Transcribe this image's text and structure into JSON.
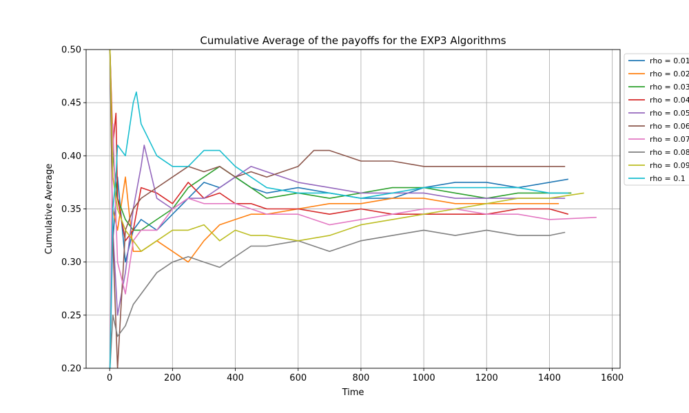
{
  "chart_data": {
    "type": "line",
    "title": "Cumulative Average of the payoffs for the EXP3 Algorithms",
    "xlabel": "Time",
    "ylabel": "Cumulative Average",
    "xlim": [
      -75,
      1625
    ],
    "ylim": [
      0.2,
      0.5
    ],
    "xticks": [
      0,
      200,
      400,
      600,
      800,
      1000,
      1200,
      1400,
      1600
    ],
    "yticks": [
      0.2,
      0.25,
      0.3,
      0.35,
      0.4,
      0.45,
      0.5
    ],
    "xtick_labels": [
      "0",
      "200",
      "400",
      "600",
      "800",
      "1000",
      "1200",
      "1400",
      "1600"
    ],
    "ytick_labels": [
      "0.20",
      "0.25",
      "0.30",
      "0.35",
      "0.40",
      "0.45",
      "0.50"
    ],
    "grid": true,
    "legend_position": "outside-right-top",
    "series": [
      {
        "name": "rho = 0.01",
        "color": "#1f77b4",
        "x": [
          1,
          10,
          25,
          50,
          75,
          100,
          150,
          200,
          250,
          300,
          350,
          400,
          450,
          500,
          600,
          700,
          800,
          900,
          1000,
          1100,
          1200,
          1300,
          1400,
          1460
        ],
        "y": [
          0.5,
          0.32,
          0.38,
          0.3,
          0.33,
          0.34,
          0.33,
          0.345,
          0.36,
          0.375,
          0.37,
          0.38,
          0.37,
          0.365,
          0.37,
          0.365,
          0.36,
          0.36,
          0.37,
          0.375,
          0.375,
          0.37,
          0.375,
          0.378
        ]
      },
      {
        "name": "rho = 0.02",
        "color": "#ff7f0e",
        "x": [
          1,
          10,
          25,
          50,
          75,
          100,
          150,
          200,
          250,
          300,
          350,
          400,
          450,
          500,
          600,
          700,
          800,
          900,
          1000,
          1100,
          1200,
          1300,
          1400,
          1430
        ],
        "y": [
          0.2,
          0.35,
          0.33,
          0.38,
          0.31,
          0.31,
          0.32,
          0.31,
          0.3,
          0.32,
          0.335,
          0.34,
          0.345,
          0.345,
          0.35,
          0.355,
          0.355,
          0.36,
          0.36,
          0.355,
          0.355,
          0.355,
          0.355,
          0.355
        ]
      },
      {
        "name": "rho = 0.03",
        "color": "#2ca02c",
        "x": [
          1,
          10,
          25,
          50,
          75,
          100,
          150,
          200,
          250,
          300,
          350,
          400,
          450,
          500,
          600,
          700,
          800,
          900,
          1000,
          1100,
          1200,
          1300,
          1400,
          1470
        ],
        "y": [
          0.5,
          0.4,
          0.36,
          0.34,
          0.33,
          0.33,
          0.34,
          0.35,
          0.37,
          0.38,
          0.39,
          0.38,
          0.37,
          0.36,
          0.365,
          0.36,
          0.365,
          0.37,
          0.37,
          0.365,
          0.36,
          0.365,
          0.365,
          0.365
        ]
      },
      {
        "name": "rho = 0.04",
        "color": "#d62728",
        "x": [
          1,
          10,
          20,
          25,
          50,
          75,
          100,
          150,
          200,
          250,
          300,
          350,
          400,
          450,
          500,
          600,
          700,
          800,
          900,
          1000,
          1100,
          1200,
          1300,
          1400,
          1460
        ],
        "y": [
          0.5,
          0.41,
          0.44,
          0.36,
          0.32,
          0.33,
          0.37,
          0.365,
          0.355,
          0.375,
          0.36,
          0.365,
          0.355,
          0.355,
          0.35,
          0.35,
          0.345,
          0.35,
          0.345,
          0.345,
          0.345,
          0.345,
          0.35,
          0.35,
          0.345
        ]
      },
      {
        "name": "rho = 0.05",
        "color": "#9467bd",
        "x": [
          1,
          10,
          25,
          50,
          75,
          100,
          110,
          150,
          200,
          250,
          300,
          350,
          400,
          450,
          500,
          600,
          700,
          800,
          900,
          1000,
          1100,
          1200,
          1300,
          1400,
          1450
        ],
        "y": [
          0.2,
          0.33,
          0.25,
          0.29,
          0.35,
          0.39,
          0.41,
          0.36,
          0.35,
          0.36,
          0.36,
          0.37,
          0.38,
          0.39,
          0.385,
          0.375,
          0.37,
          0.365,
          0.365,
          0.365,
          0.36,
          0.36,
          0.36,
          0.36,
          0.36
        ]
      },
      {
        "name": "rho = 0.06",
        "color": "#8c564b",
        "x": [
          1,
          10,
          25,
          50,
          75,
          100,
          150,
          200,
          250,
          300,
          350,
          400,
          450,
          500,
          600,
          650,
          700,
          800,
          900,
          1000,
          1100,
          1200,
          1300,
          1400,
          1450
        ],
        "y": [
          0.5,
          0.32,
          0.2,
          0.33,
          0.35,
          0.36,
          0.37,
          0.38,
          0.39,
          0.385,
          0.39,
          0.38,
          0.385,
          0.38,
          0.39,
          0.405,
          0.405,
          0.395,
          0.395,
          0.39,
          0.39,
          0.39,
          0.39,
          0.39,
          0.39
        ]
      },
      {
        "name": "rho = 0.07",
        "color": "#e377c2",
        "x": [
          1,
          10,
          25,
          50,
          75,
          100,
          150,
          200,
          250,
          300,
          350,
          400,
          450,
          500,
          600,
          700,
          800,
          900,
          1000,
          1100,
          1200,
          1300,
          1400,
          1550
        ],
        "y": [
          0.2,
          0.43,
          0.3,
          0.27,
          0.32,
          0.33,
          0.33,
          0.35,
          0.36,
          0.355,
          0.355,
          0.355,
          0.35,
          0.345,
          0.345,
          0.335,
          0.34,
          0.345,
          0.35,
          0.35,
          0.345,
          0.345,
          0.34,
          0.342
        ]
      },
      {
        "name": "rho = 0.08",
        "color": "#7f7f7f",
        "x": [
          1,
          10,
          25,
          50,
          75,
          100,
          150,
          200,
          250,
          300,
          350,
          400,
          450,
          500,
          600,
          700,
          800,
          900,
          1000,
          1100,
          1200,
          1300,
          1400,
          1450
        ],
        "y": [
          0.2,
          0.25,
          0.23,
          0.24,
          0.26,
          0.27,
          0.29,
          0.3,
          0.305,
          0.3,
          0.295,
          0.305,
          0.315,
          0.315,
          0.32,
          0.31,
          0.32,
          0.325,
          0.33,
          0.325,
          0.33,
          0.325,
          0.325,
          0.328
        ]
      },
      {
        "name": "rho = 0.09",
        "color": "#bcbd22",
        "x": [
          1,
          10,
          25,
          50,
          75,
          100,
          150,
          200,
          250,
          300,
          350,
          400,
          450,
          500,
          600,
          700,
          800,
          900,
          1000,
          1100,
          1200,
          1300,
          1400,
          1510
        ],
        "y": [
          0.5,
          0.38,
          0.35,
          0.33,
          0.32,
          0.31,
          0.32,
          0.33,
          0.33,
          0.335,
          0.32,
          0.33,
          0.325,
          0.325,
          0.32,
          0.325,
          0.335,
          0.34,
          0.345,
          0.35,
          0.355,
          0.36,
          0.36,
          0.365
        ]
      },
      {
        "name": "rho = 0.1",
        "color": "#17becf",
        "x": [
          1,
          10,
          20,
          25,
          50,
          75,
          85,
          100,
          150,
          200,
          250,
          300,
          350,
          400,
          450,
          500,
          600,
          700,
          800,
          900,
          1000,
          1100,
          1200,
          1300,
          1400,
          1460
        ],
        "y": [
          0.2,
          0.35,
          0.38,
          0.41,
          0.4,
          0.45,
          0.46,
          0.43,
          0.4,
          0.39,
          0.39,
          0.405,
          0.405,
          0.39,
          0.38,
          0.37,
          0.365,
          0.365,
          0.36,
          0.365,
          0.37,
          0.37,
          0.37,
          0.37,
          0.365,
          0.365
        ]
      }
    ]
  }
}
